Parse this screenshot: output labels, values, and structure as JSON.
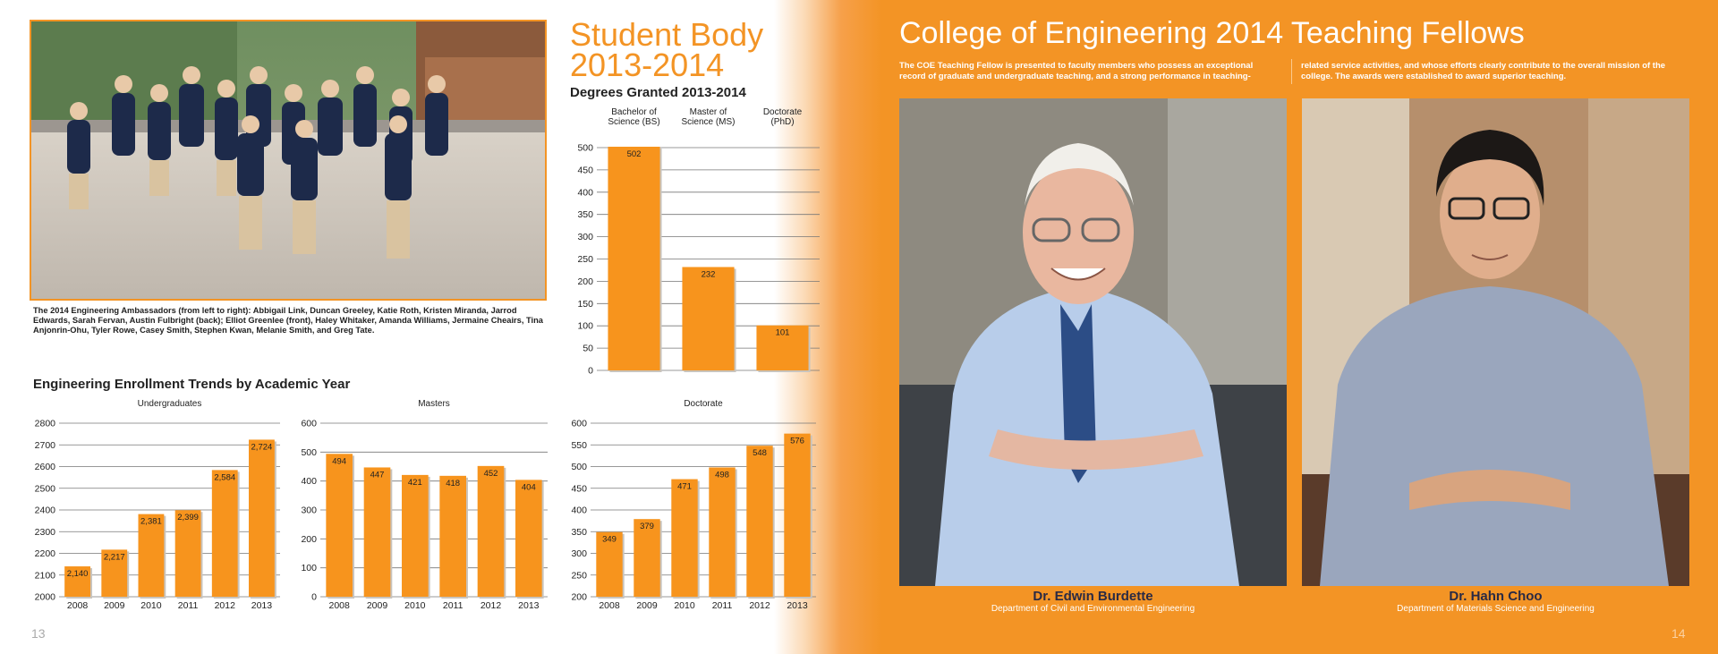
{
  "left_page": {
    "page_number": "13",
    "photo_caption": "The 2014 Engineering Ambassadors (from left to right): Abbigail Link, Duncan Greeley, Katie Roth, Kristen Miranda, Jarrod Edwards, Sarah Fervan, Austin Fulbright (back); Elliot Greenlee (front), Haley Whitaker, Amanda Williams, Jermaine Cheairs, Tina Anjonrin-Ohu, Tyler Rowe, Casey Smith, Stephen Kwan, Melanie Smith, and Greg Tate.",
    "student_body_title_line1": "Student Body",
    "student_body_title_line2": "2013-2014",
    "degrees_title": "Degrees Granted 2013-2014",
    "enrollment_title": "Engineering Enrollment Trends by Academic Year"
  },
  "right_page": {
    "page_number": "14",
    "title": "College of Engineering 2014 Teaching Fellows",
    "intro_col1": "The COE Teaching Fellow is presented to faculty members who possess an exceptional record of graduate and undergraduate teaching, and a strong performance in teaching-",
    "intro_col2": "related service activities, and whose efforts clearly contribute to the overall mission of the college. The awards were established to award superior teaching.",
    "fellows": [
      {
        "name": "Dr. Edwin Burdette",
        "department": "Department of Civil and Environmental Engineering"
      },
      {
        "name": "Dr. Hahn Choo",
        "department": "Department of Materials Science and Engineering"
      }
    ]
  },
  "chart_data": [
    {
      "type": "bar",
      "title": "Degrees Granted 2013-2014",
      "categories": [
        "Bachelor of Science (BS)",
        "Master of Science (MS)",
        "Doctorate (PhD)"
      ],
      "category_lines": [
        [
          "Bachelor of",
          "Science (BS)"
        ],
        [
          "Master of",
          "Science (MS)"
        ],
        [
          "Doctorate",
          "(PhD)"
        ]
      ],
      "values": [
        502,
        232,
        101
      ],
      "ylim": [
        0,
        500
      ],
      "yticks": [
        0,
        50,
        100,
        150,
        200,
        250,
        300,
        350,
        400,
        450,
        500
      ],
      "color": "#f7941d"
    },
    {
      "type": "bar",
      "title": "Undergraduates",
      "categories": [
        "2008",
        "2009",
        "2010",
        "2011",
        "2012",
        "2013"
      ],
      "values": [
        2140,
        2217,
        2381,
        2399,
        2584,
        2724
      ],
      "value_labels": [
        "2,140",
        "2,217",
        "2,381",
        "2,399",
        "2,584",
        "2,724"
      ],
      "ylim": [
        2000,
        2800
      ],
      "yticks": [
        2000,
        2100,
        2200,
        2300,
        2400,
        2500,
        2600,
        2700,
        2800
      ],
      "color": "#f7941d"
    },
    {
      "type": "bar",
      "title": "Masters",
      "categories": [
        "2008",
        "2009",
        "2010",
        "2011",
        "2012",
        "2013"
      ],
      "values": [
        494,
        447,
        421,
        418,
        452,
        404
      ],
      "value_labels": [
        "494",
        "447",
        "421",
        "418",
        "452",
        "404"
      ],
      "ylim": [
        0,
        600
      ],
      "yticks": [
        0,
        100,
        200,
        300,
        400,
        500,
        600
      ],
      "color": "#f7941d"
    },
    {
      "type": "bar",
      "title": "Doctorate",
      "categories": [
        "2008",
        "2009",
        "2010",
        "2011",
        "2012",
        "2013"
      ],
      "values": [
        349,
        379,
        471,
        498,
        548,
        576
      ],
      "value_labels": [
        "349",
        "379",
        "471",
        "498",
        "548",
        "576"
      ],
      "ylim": [
        200,
        600
      ],
      "yticks": [
        200,
        250,
        300,
        350,
        400,
        450,
        500,
        550,
        600
      ],
      "color": "#f7941d"
    }
  ]
}
